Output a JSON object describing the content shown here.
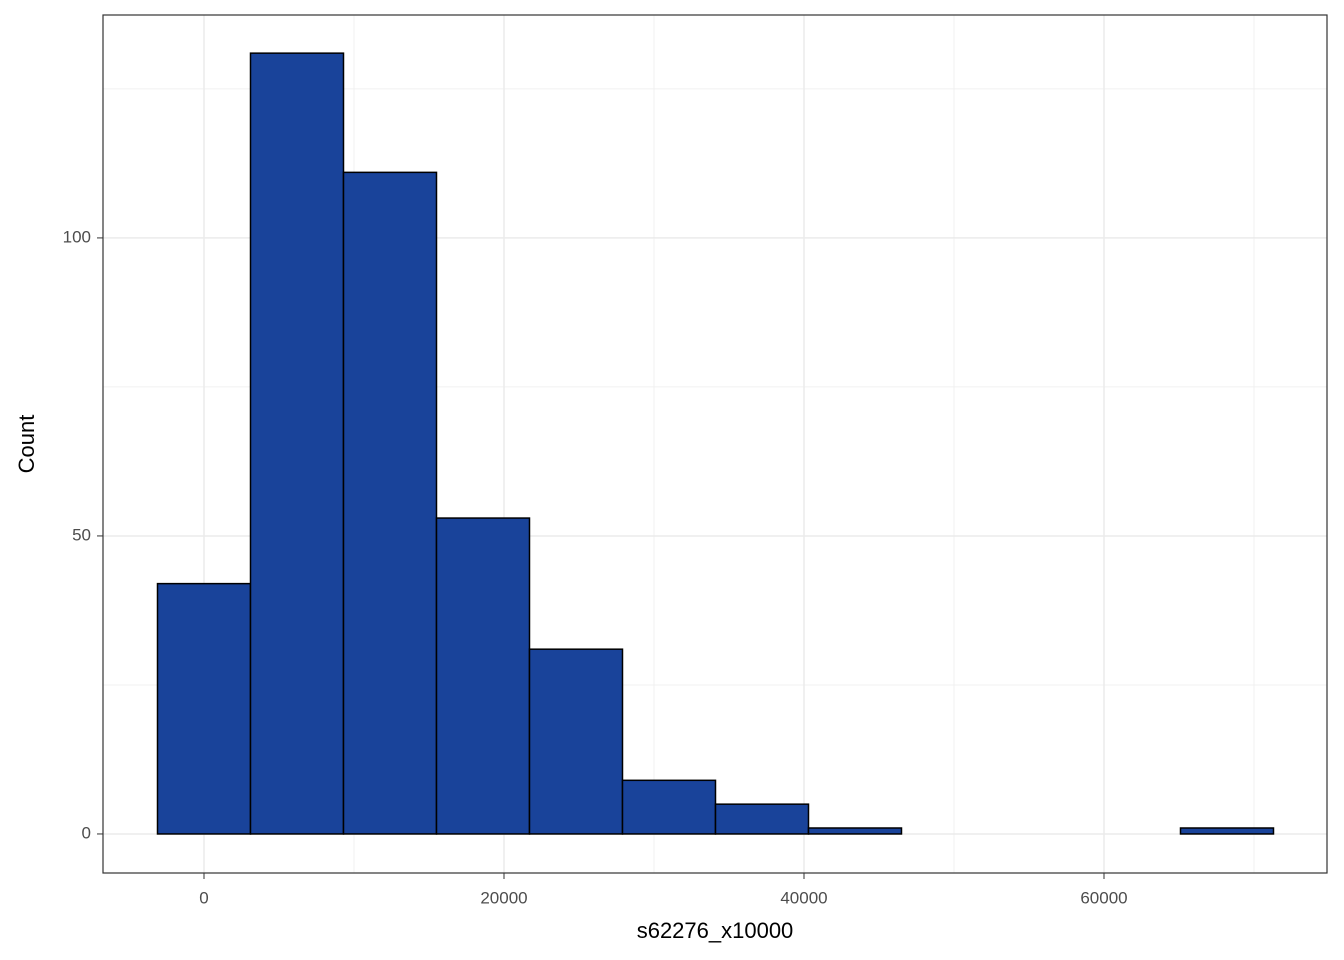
{
  "chart_data": {
    "type": "histogram",
    "x_label": "s62276_x10000",
    "y_label": "Count",
    "bins": [
      -3100,
      3100,
      9300,
      15500,
      21700,
      27900,
      34100,
      40300,
      46500,
      52700,
      58900,
      65100,
      71300
    ],
    "counts": [
      42,
      131,
      111,
      53,
      31,
      9,
      5,
      1,
      0,
      0,
      0,
      1
    ],
    "color": "#19439a",
    "xlim": [
      -6733,
      74867
    ],
    "ylim": [
      -6.55,
      137.4
    ],
    "xticks": [
      0,
      20000,
      40000,
      60000
    ],
    "yticks": [
      0,
      50,
      100
    ],
    "grid": true,
    "minor_grid": true
  }
}
